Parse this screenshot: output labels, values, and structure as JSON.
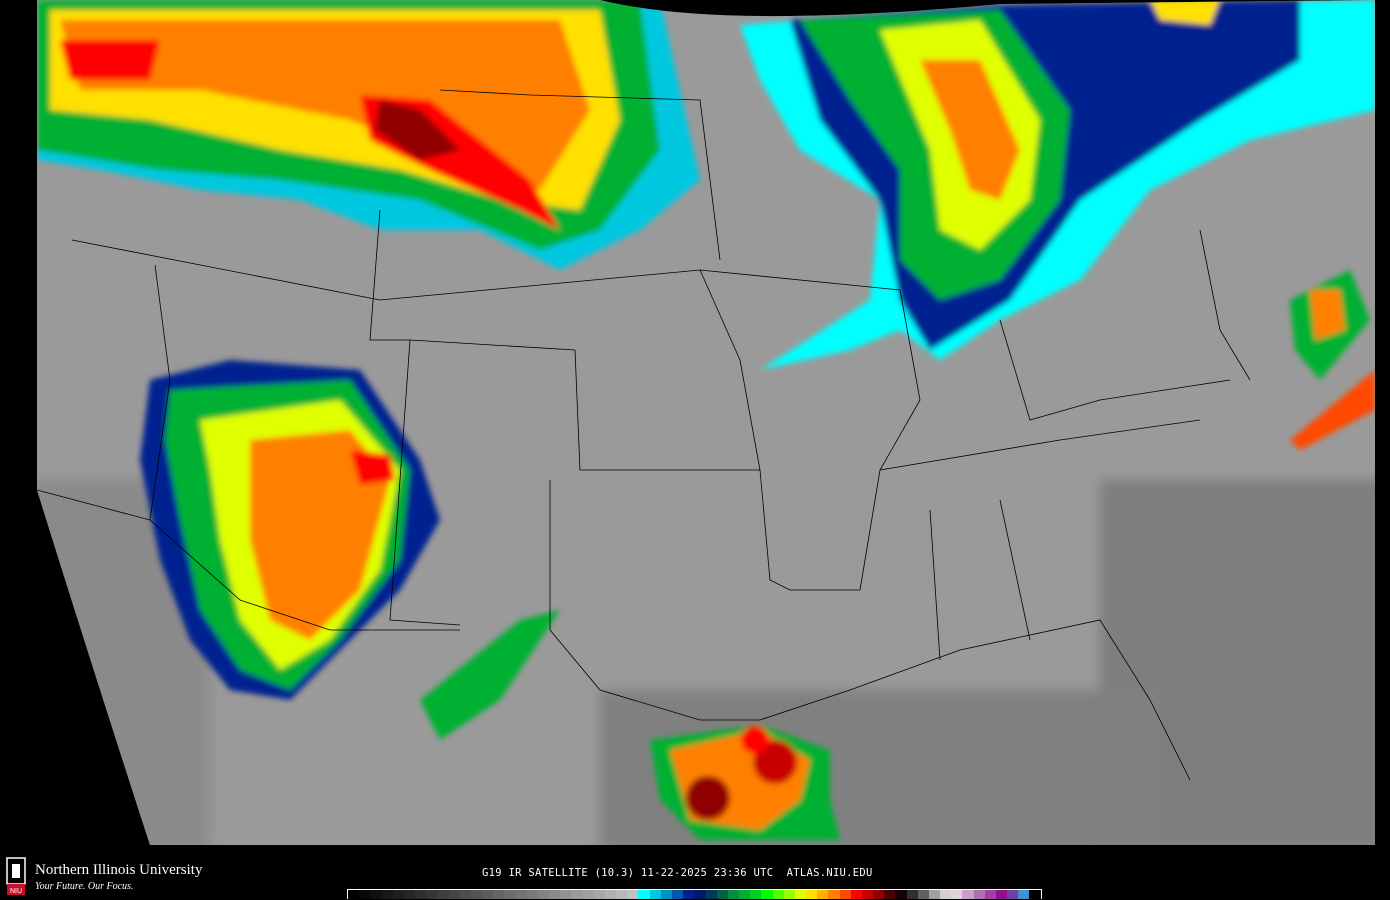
{
  "product": {
    "caption": "G19 IR SATELLITE (10.3) 11-22-2025 23:36 UTC  ATLAS.NIU.EDU"
  },
  "branding": {
    "name": "Northern Illinois University",
    "tagline": "Your Future. Our Focus.",
    "seal_text": "NIU"
  },
  "map": {
    "background_color": "#000000",
    "land_gray": "#9a9a9a",
    "boundary_color": "#000000"
  },
  "colorbar": {
    "gray_start": "#000000",
    "gray_end": "#c0c0c0",
    "gray_steps": 26,
    "colors": [
      "#00ffff",
      "#00c8e0",
      "#0090c8",
      "#0058a8",
      "#002090",
      "#001870",
      "#003858",
      "#006040",
      "#00903c",
      "#00b030",
      "#00d020",
      "#00ff00",
      "#50ff00",
      "#98ff00",
      "#e0ff00",
      "#ffe000",
      "#ffb000",
      "#ff8000",
      "#ff4800",
      "#ff0000",
      "#c80000",
      "#900000",
      "#480000",
      "#180000",
      "#303030",
      "#606060",
      "#a0a0a0",
      "#d0d0d0",
      "#e0d0e0",
      "#c8a0c8",
      "#b070b0",
      "#a040a0",
      "#901090",
      "#7040a0",
      "#4090d0",
      "#000000"
    ]
  }
}
